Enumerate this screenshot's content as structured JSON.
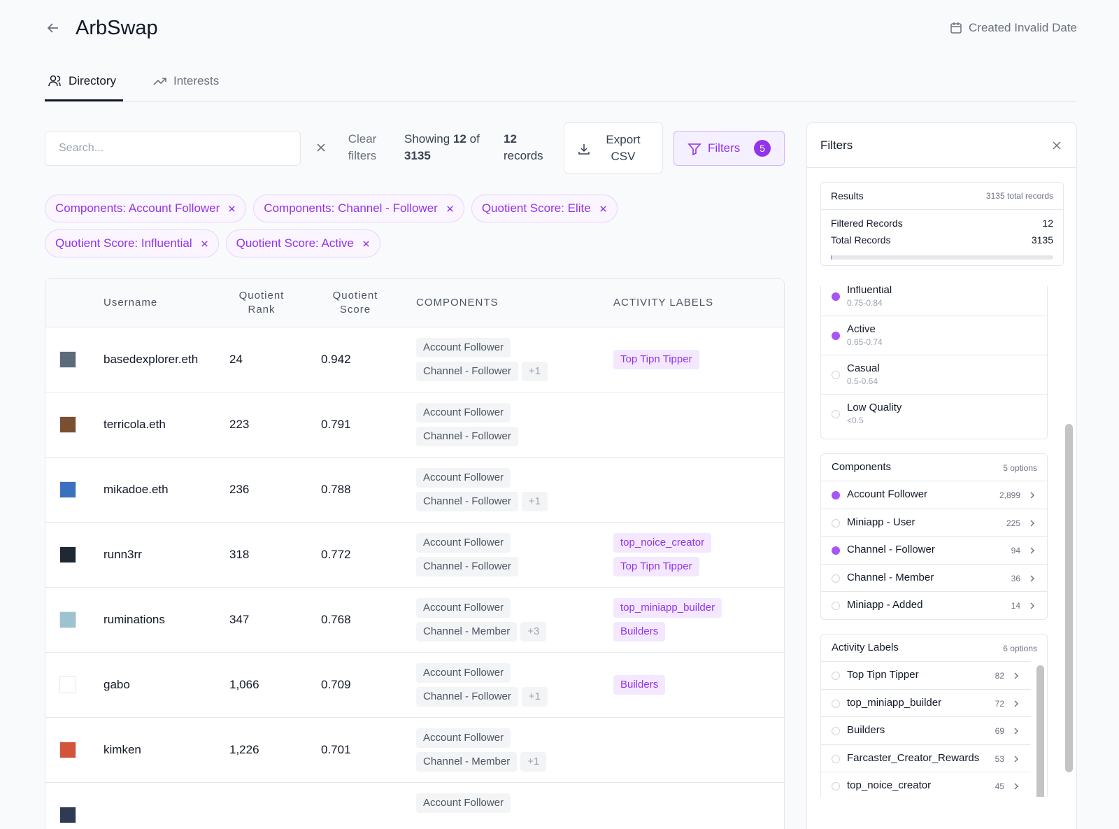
{
  "header": {
    "title": "ArbSwap",
    "created": "Created Invalid Date"
  },
  "tabs": [
    "Directory",
    "Interests"
  ],
  "toolbar": {
    "search_placeholder": "Search...",
    "clear": "Clear filters",
    "showing": {
      "prefix": "Showing",
      "shown": "12",
      "of": "of",
      "total": "3135"
    },
    "records": {
      "count": "12",
      "label": "records"
    },
    "export": "Export CSV",
    "filters": {
      "label": "Filters",
      "count": "5"
    }
  },
  "chips": [
    "Components: Account Follower",
    "Components: Channel - Follower",
    "Quotient Score: Elite",
    "Quotient Score: Influential",
    "Quotient Score: Active"
  ],
  "table": {
    "headers": [
      "Username",
      "Quotient Rank",
      "Quotient Score",
      "COMPONENTS",
      "ACTIVITY LABELS"
    ],
    "rows": [
      {
        "username": "basedexplorer.eth",
        "rank": "24",
        "score": "0.942",
        "components": [
          "Account Follower",
          "Channel - Follower"
        ],
        "more": "+1",
        "labels": [
          "Top Tipn Tipper"
        ]
      },
      {
        "username": "terricola.eth",
        "rank": "223",
        "score": "0.791",
        "components": [
          "Account Follower",
          "Channel - Follower"
        ],
        "labels": []
      },
      {
        "username": "mikadoe.eth",
        "rank": "236",
        "score": "0.788",
        "components": [
          "Account Follower",
          "Channel - Follower"
        ],
        "more": "+1",
        "labels": []
      },
      {
        "username": "runn3rr",
        "rank": "318",
        "score": "0.772",
        "components": [
          "Account Follower",
          "Channel - Follower"
        ],
        "labels": [
          "top_noice_creator",
          "Top Tipn Tipper"
        ]
      },
      {
        "username": "ruminations",
        "rank": "347",
        "score": "0.768",
        "components": [
          "Account Follower",
          "Channel - Member"
        ],
        "more": "+3",
        "labels": [
          "top_miniapp_builder",
          "Builders"
        ]
      },
      {
        "username": "gabo",
        "rank": "1,066",
        "score": "0.709",
        "components": [
          "Account Follower",
          "Channel - Follower"
        ],
        "more": "+1",
        "labels": [
          "Builders"
        ]
      },
      {
        "username": "kimken",
        "rank": "1,226",
        "score": "0.701",
        "components": [
          "Account Follower",
          "Channel - Member"
        ],
        "more": "+1",
        "labels": []
      },
      {
        "components": [
          "Account Follower"
        ],
        "labels": []
      }
    ]
  },
  "panel": {
    "title": "Filters",
    "results": {
      "title": "Results",
      "note": "3135 total records",
      "rows": [
        {
          "label": "Filtered Records",
          "value": 12
        },
        {
          "label": "Total Records",
          "value": 3135
        }
      ]
    },
    "quotient": [
      {
        "name": "Influential",
        "range": "0.75-0.84",
        "selected": true
      },
      {
        "name": "Active",
        "range": "0.65-0.74",
        "selected": true
      },
      {
        "name": "Casual",
        "range": "0.5-0.64",
        "selected": false
      },
      {
        "name": "Low Quality",
        "range": "<0.5",
        "selected": false
      }
    ],
    "components": {
      "title": "Components",
      "note": "5 options",
      "items": [
        {
          "name": "Account Follower",
          "count": "2,899",
          "selected": true
        },
        {
          "name": "Miniapp - User",
          "count": "225",
          "selected": false
        },
        {
          "name": "Channel - Follower",
          "count": "94",
          "selected": true
        },
        {
          "name": "Channel - Member",
          "count": "36",
          "selected": false
        },
        {
          "name": "Miniapp - Added",
          "count": "14",
          "selected": false
        }
      ]
    },
    "activity": {
      "title": "Activity Labels",
      "note": "6 options",
      "items": [
        {
          "name": "Top Tipn Tipper",
          "count": "82",
          "selected": false
        },
        {
          "name": "top_miniapp_builder",
          "count": "72",
          "selected": false
        },
        {
          "name": "Builders",
          "count": "69",
          "selected": false
        },
        {
          "name": "Farcaster_Creator_Rewards",
          "count": "53",
          "selected": false
        },
        {
          "name": "top_noice_creator",
          "count": "45",
          "selected": false
        }
      ]
    }
  }
}
